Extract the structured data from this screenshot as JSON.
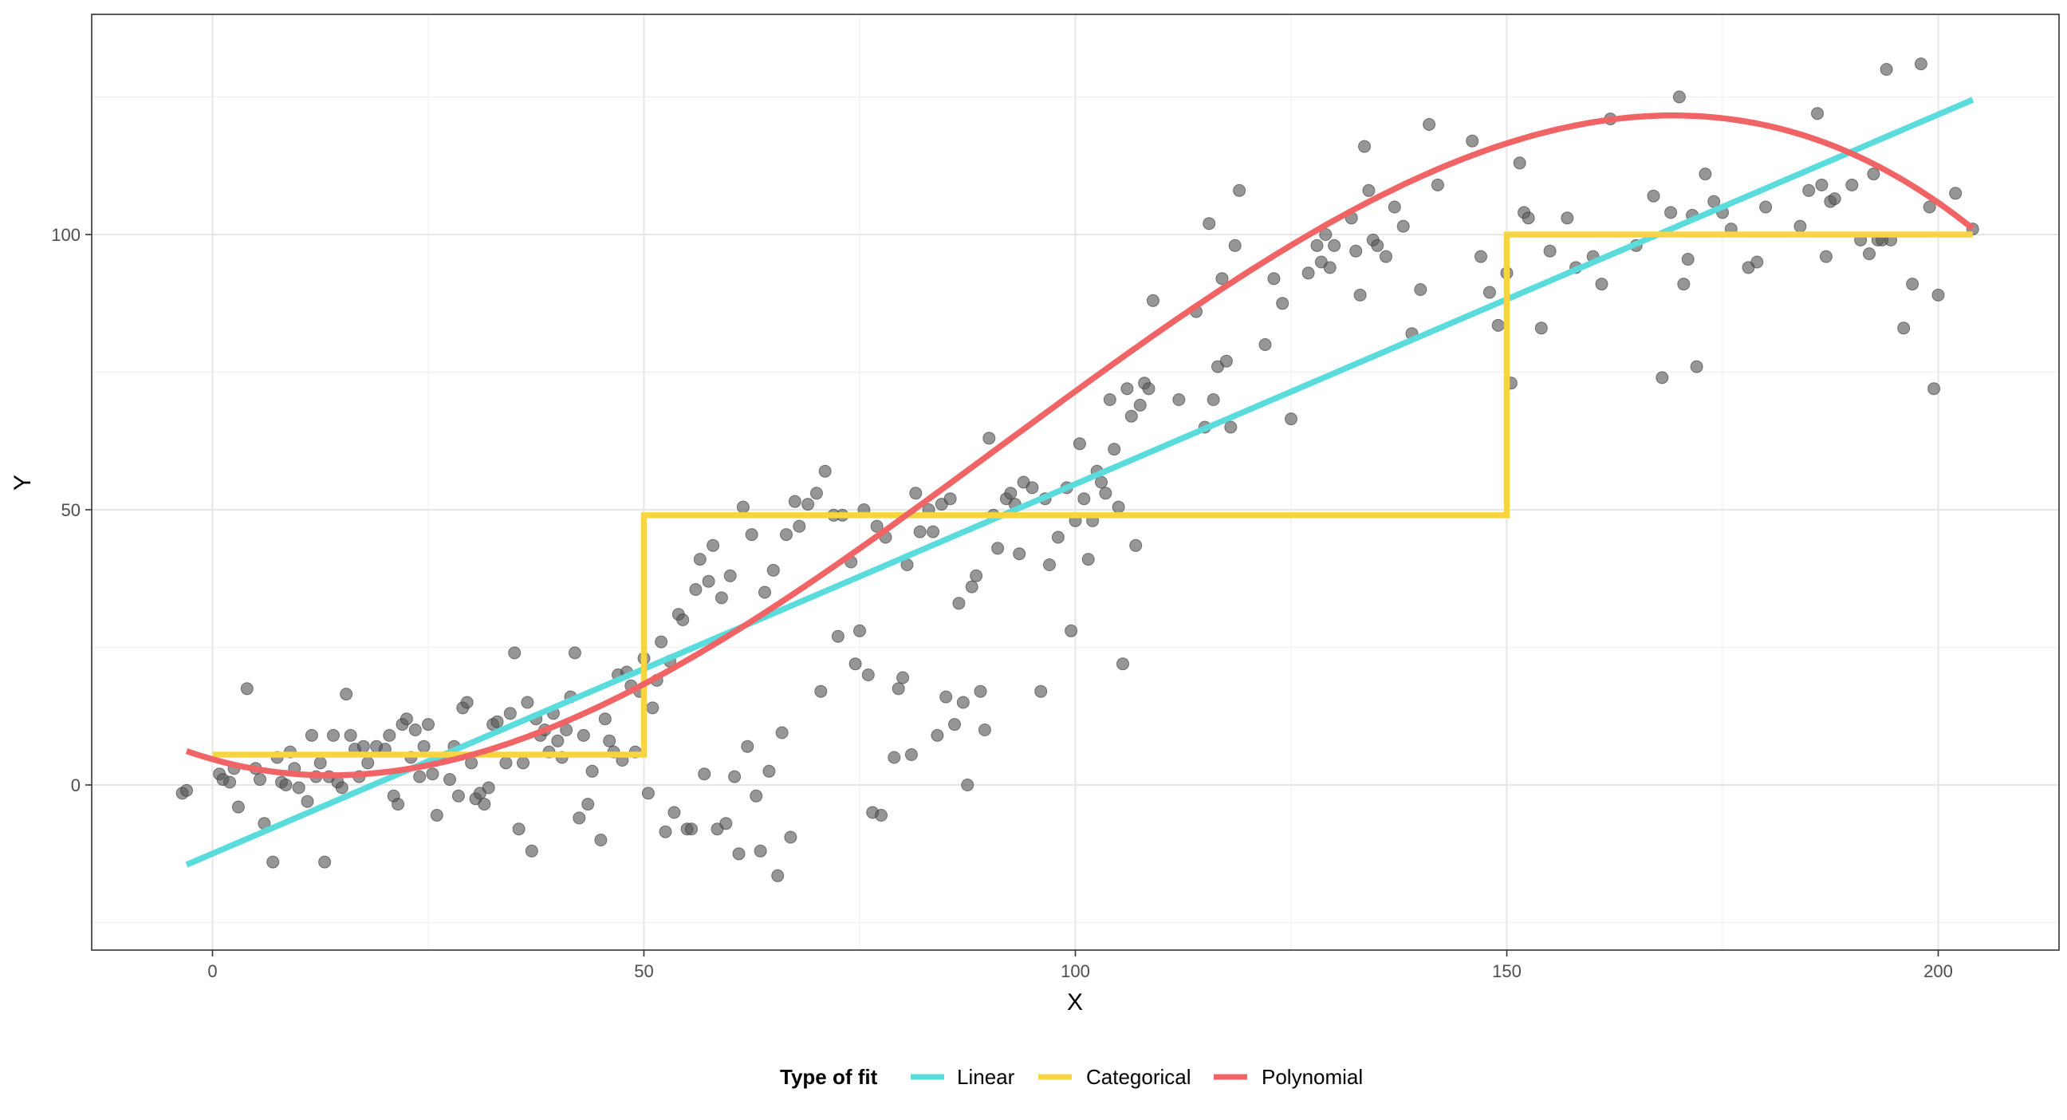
{
  "chart_data": {
    "type": "scatter",
    "title": "",
    "xlabel": "X",
    "ylabel": "Y",
    "xlim": [
      -14,
      214
    ],
    "ylim": [
      -30,
      140
    ],
    "x_ticks": [
      0,
      50,
      100,
      150,
      200
    ],
    "y_ticks": [
      0,
      50,
      100
    ],
    "x_tick_labels": [
      "0",
      "50",
      "100",
      "150",
      "200"
    ],
    "y_tick_labels": [
      "0",
      "50",
      "100"
    ],
    "grid": true,
    "legend": {
      "title": "Type of fit",
      "position": "bottom",
      "entries": [
        {
          "label": "Linear",
          "color": "#5BDCDC"
        },
        {
          "label": "Categorical",
          "color": "#F8D444"
        },
        {
          "label": "Polynomial",
          "color": "#F06466"
        }
      ]
    },
    "points_color": "#555555",
    "points": [
      [
        -3.5,
        -1.5
      ],
      [
        -3,
        -1
      ],
      [
        0.8,
        2
      ],
      [
        1.2,
        1
      ],
      [
        2,
        0.5
      ],
      [
        2.5,
        3
      ],
      [
        3,
        -4
      ],
      [
        4,
        17.5
      ],
      [
        5,
        3
      ],
      [
        5.5,
        1
      ],
      [
        6,
        -7
      ],
      [
        7,
        -14
      ],
      [
        7.5,
        5
      ],
      [
        8,
        0.5
      ],
      [
        8.5,
        0
      ],
      [
        9,
        6
      ],
      [
        9.5,
        3
      ],
      [
        10,
        -0.5
      ],
      [
        11,
        -3
      ],
      [
        11.5,
        9
      ],
      [
        12,
        1.5
      ],
      [
        12.5,
        4
      ],
      [
        13,
        -14
      ],
      [
        13.5,
        1.5
      ],
      [
        14,
        9
      ],
      [
        14.5,
        0.5
      ],
      [
        15,
        -0.5
      ],
      [
        15.5,
        16.5
      ],
      [
        16,
        9
      ],
      [
        16.5,
        6.5
      ],
      [
        17,
        1.5
      ],
      [
        17.5,
        7
      ],
      [
        18,
        4
      ],
      [
        19,
        7
      ],
      [
        20,
        6.5
      ],
      [
        20.5,
        9
      ],
      [
        21,
        -2
      ],
      [
        21.5,
        -3.5
      ],
      [
        22,
        11
      ],
      [
        22.5,
        12
      ],
      [
        23,
        5
      ],
      [
        23.5,
        10
      ],
      [
        24,
        1.5
      ],
      [
        24.5,
        7
      ],
      [
        25,
        11
      ],
      [
        25.5,
        2
      ],
      [
        26,
        -5.5
      ],
      [
        27,
        5
      ],
      [
        27.5,
        1
      ],
      [
        28,
        7
      ],
      [
        28.5,
        -2
      ],
      [
        29,
        14
      ],
      [
        29.5,
        15
      ],
      [
        30,
        4
      ],
      [
        30.5,
        -2.5
      ],
      [
        31,
        -1.5
      ],
      [
        31.5,
        -3.5
      ],
      [
        32,
        -0.5
      ],
      [
        32.5,
        11
      ],
      [
        33,
        11.5
      ],
      [
        34,
        4
      ],
      [
        34.5,
        13
      ],
      [
        35,
        24
      ],
      [
        35.5,
        -8
      ],
      [
        36,
        4
      ],
      [
        36.5,
        15
      ],
      [
        37,
        -12
      ],
      [
        37.5,
        12
      ],
      [
        38,
        9
      ],
      [
        38.5,
        10
      ],
      [
        39,
        6
      ],
      [
        39.5,
        13
      ],
      [
        40,
        8
      ],
      [
        40.5,
        5
      ],
      [
        41,
        10
      ],
      [
        41.5,
        16
      ],
      [
        42,
        24
      ],
      [
        42.5,
        -6
      ],
      [
        43,
        9
      ],
      [
        43.5,
        -3.5
      ],
      [
        44,
        2.5
      ],
      [
        45,
        -10
      ],
      [
        45.5,
        12
      ],
      [
        46,
        8
      ],
      [
        46.5,
        6
      ],
      [
        47,
        20
      ],
      [
        47.5,
        4.5
      ],
      [
        48,
        20.5
      ],
      [
        48.5,
        18
      ],
      [
        49,
        6
      ],
      [
        49.5,
        17
      ],
      [
        50,
        23
      ],
      [
        50.5,
        -1.5
      ],
      [
        51,
        14
      ],
      [
        51.5,
        19
      ],
      [
        52,
        26
      ],
      [
        52.5,
        -8.5
      ],
      [
        53,
        22.5
      ],
      [
        53.5,
        -5
      ],
      [
        54,
        31
      ],
      [
        54.5,
        30
      ],
      [
        55,
        -8
      ],
      [
        55.5,
        -8
      ],
      [
        56,
        35.5
      ],
      [
        56.5,
        41
      ],
      [
        57,
        2
      ],
      [
        57.5,
        37
      ],
      [
        58,
        43.5
      ],
      [
        58.5,
        -8
      ],
      [
        59,
        34
      ],
      [
        59.5,
        -7
      ],
      [
        60,
        38
      ],
      [
        60.5,
        1.5
      ],
      [
        61,
        -12.5
      ],
      [
        61.5,
        50.5
      ],
      [
        62,
        7
      ],
      [
        62.5,
        45.5
      ],
      [
        63,
        -2
      ],
      [
        63.5,
        -12
      ],
      [
        64,
        35
      ],
      [
        64.5,
        2.5
      ],
      [
        65,
        39
      ],
      [
        65.5,
        -16.5
      ],
      [
        66,
        9.5
      ],
      [
        66.5,
        45.5
      ],
      [
        67,
        -9.5
      ],
      [
        67.5,
        51.5
      ],
      [
        68,
        47
      ],
      [
        69,
        51
      ],
      [
        70,
        53
      ],
      [
        70.5,
        17
      ],
      [
        71,
        57
      ],
      [
        72,
        49
      ],
      [
        72.5,
        27
      ],
      [
        73,
        49
      ],
      [
        74,
        40.5
      ],
      [
        74.5,
        22
      ],
      [
        75,
        28
      ],
      [
        75.5,
        50
      ],
      [
        76,
        20
      ],
      [
        76.5,
        -5
      ],
      [
        77,
        47
      ],
      [
        77.5,
        -5.5
      ],
      [
        78,
        45
      ],
      [
        79,
        5
      ],
      [
        79.5,
        17.5
      ],
      [
        80,
        19.5
      ],
      [
        80.5,
        40
      ],
      [
        81,
        5.5
      ],
      [
        81.5,
        53
      ],
      [
        82,
        46
      ],
      [
        83,
        50
      ],
      [
        83.5,
        46
      ],
      [
        84,
        9
      ],
      [
        84.5,
        51
      ],
      [
        85,
        16
      ],
      [
        85.5,
        52
      ],
      [
        86,
        11
      ],
      [
        86.5,
        33
      ],
      [
        87,
        15
      ],
      [
        87.5,
        0
      ],
      [
        88,
        36
      ],
      [
        88.5,
        38
      ],
      [
        89,
        17
      ],
      [
        89.5,
        10
      ],
      [
        90,
        63
      ],
      [
        90.5,
        49
      ],
      [
        91,
        43
      ],
      [
        92,
        52
      ],
      [
        92.5,
        53
      ],
      [
        93,
        51
      ],
      [
        93.5,
        42
      ],
      [
        94,
        55
      ],
      [
        95,
        54
      ],
      [
        96,
        17
      ],
      [
        96.5,
        52
      ],
      [
        97,
        40
      ],
      [
        98,
        45
      ],
      [
        99,
        54
      ],
      [
        99.5,
        28
      ],
      [
        100,
        48
      ],
      [
        100.5,
        62
      ],
      [
        101,
        52
      ],
      [
        101.5,
        41
      ],
      [
        102,
        48
      ],
      [
        102.5,
        57
      ],
      [
        103,
        55
      ],
      [
        103.5,
        53
      ],
      [
        104,
        70
      ],
      [
        104.5,
        61
      ],
      [
        105,
        50.5
      ],
      [
        105.5,
        22
      ],
      [
        106,
        72
      ],
      [
        106.5,
        67
      ],
      [
        107,
        43.5
      ],
      [
        107.5,
        69
      ],
      [
        108,
        73
      ],
      [
        108.5,
        72
      ],
      [
        109,
        88
      ],
      [
        112,
        70
      ],
      [
        114,
        86
      ],
      [
        115,
        65
      ],
      [
        115.5,
        102
      ],
      [
        116,
        70
      ],
      [
        116.5,
        76
      ],
      [
        117,
        92
      ],
      [
        117.5,
        77
      ],
      [
        118,
        65
      ],
      [
        118.5,
        98
      ],
      [
        119,
        108
      ],
      [
        122,
        80
      ],
      [
        123,
        92
      ],
      [
        124,
        87.5
      ],
      [
        125,
        66.5
      ],
      [
        127,
        93
      ],
      [
        128,
        98
      ],
      [
        128.5,
        95
      ],
      [
        129,
        100
      ],
      [
        129.5,
        94
      ],
      [
        130,
        98
      ],
      [
        132,
        103
      ],
      [
        132.5,
        97
      ],
      [
        133,
        89
      ],
      [
        133.5,
        116
      ],
      [
        134,
        108
      ],
      [
        134.5,
        99
      ],
      [
        135,
        98
      ],
      [
        136,
        96
      ],
      [
        137,
        105
      ],
      [
        138,
        101.5
      ],
      [
        139,
        82
      ],
      [
        140,
        90
      ],
      [
        141,
        120
      ],
      [
        142,
        109
      ],
      [
        146,
        117
      ],
      [
        147,
        96
      ],
      [
        148,
        89.5
      ],
      [
        149,
        83.5
      ],
      [
        150,
        93
      ],
      [
        150.5,
        73
      ],
      [
        151.5,
        113
      ],
      [
        152,
        104
      ],
      [
        152.5,
        103
      ],
      [
        154,
        83
      ],
      [
        155,
        97
      ],
      [
        157,
        103
      ],
      [
        158,
        94
      ],
      [
        160,
        96
      ],
      [
        161,
        91
      ],
      [
        162,
        121
      ],
      [
        165,
        98
      ],
      [
        167,
        107
      ],
      [
        168,
        74
      ],
      [
        169,
        104
      ],
      [
        170,
        125
      ],
      [
        170.5,
        91
      ],
      [
        171,
        95.5
      ],
      [
        171.5,
        103.5
      ],
      [
        172,
        76
      ],
      [
        173,
        111
      ],
      [
        174,
        106
      ],
      [
        175,
        104
      ],
      [
        176,
        101
      ],
      [
        178,
        94
      ],
      [
        179,
        95
      ],
      [
        180,
        105
      ],
      [
        184,
        101.5
      ],
      [
        185,
        108
      ],
      [
        186,
        122
      ],
      [
        186.5,
        109
      ],
      [
        187,
        96
      ],
      [
        187.5,
        106
      ],
      [
        188,
        106.5
      ],
      [
        190,
        109
      ],
      [
        191,
        99
      ],
      [
        192,
        96.5
      ],
      [
        192.5,
        111
      ],
      [
        193,
        99
      ],
      [
        193.5,
        99
      ],
      [
        194,
        130
      ],
      [
        194.5,
        99
      ],
      [
        196,
        83
      ],
      [
        197,
        91
      ],
      [
        198,
        131
      ],
      [
        199,
        105
      ],
      [
        199.5,
        72
      ],
      [
        200,
        89
      ],
      [
        202,
        107.5
      ],
      [
        204,
        101
      ]
    ],
    "series": [
      {
        "name": "Linear",
        "color": "#5BDCDC",
        "kind": "line",
        "x": [
          -3,
          204
        ],
        "y": [
          -14.5,
          124.5
        ]
      },
      {
        "name": "Categorical",
        "color": "#F8D444",
        "kind": "step",
        "x": [
          0,
          50,
          50,
          150,
          150,
          204
        ],
        "y": [
          5.5,
          5.5,
          49,
          49,
          100,
          100
        ]
      },
      {
        "name": "Polynomial",
        "color": "#F06466",
        "kind": "curve",
        "poly": [
          4.6683,
          -0.44015,
          0.017445,
          -6.3582e-05
        ],
        "x_range": [
          -3,
          204
        ]
      }
    ]
  }
}
